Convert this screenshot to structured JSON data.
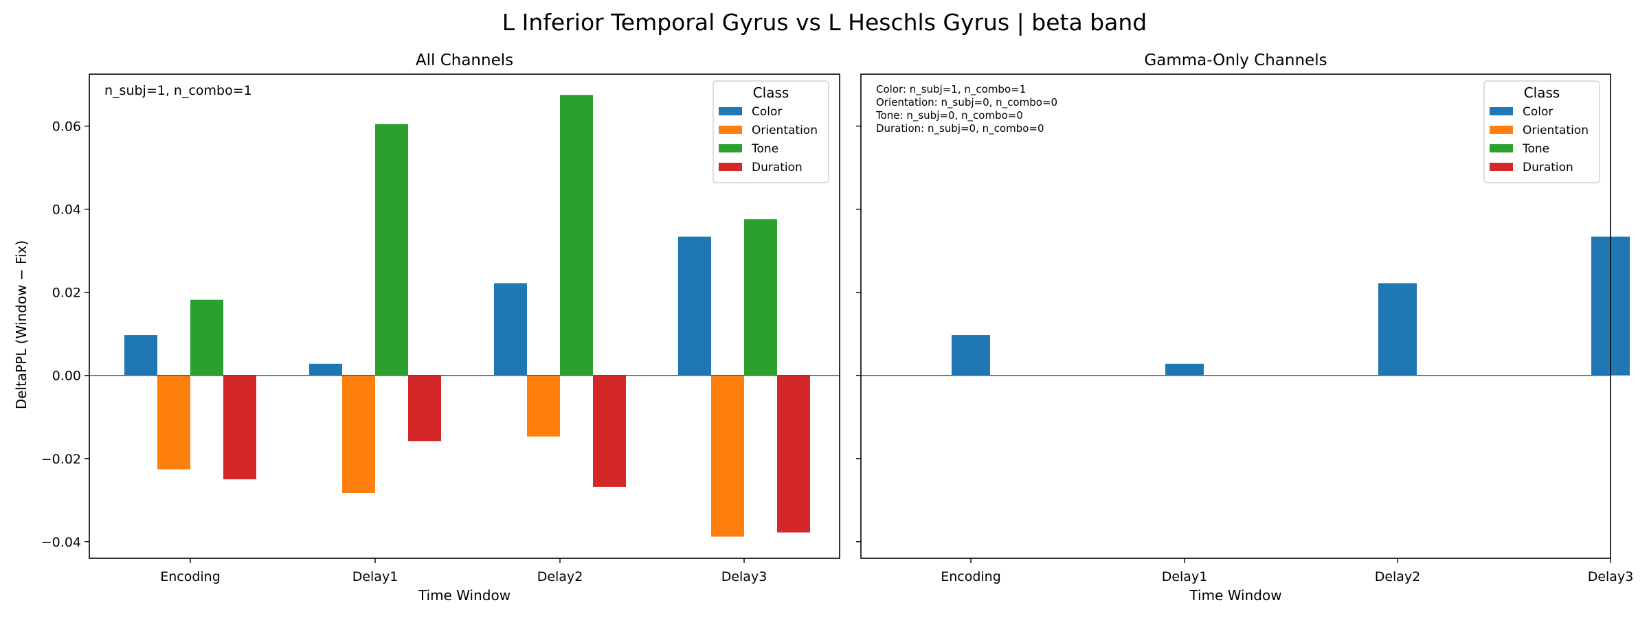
{
  "title": "L Inferior Temporal Gyrus vs L Heschls Gyrus  |  beta band",
  "ylabel": "DeltaPPL (Window − Fix)",
  "chart_data": [
    {
      "type": "bar",
      "title": "All Channels",
      "xlabel": "Time Window",
      "ylabel": "DeltaPPL (Window − Fix)",
      "categories": [
        "Encoding",
        "Delay1",
        "Delay2",
        "Delay3"
      ],
      "series": [
        {
          "name": "Color",
          "color": "#1f77b4",
          "values": [
            0.0097,
            0.0028,
            0.0222,
            0.0334
          ]
        },
        {
          "name": "Orientation",
          "color": "#ff7f0e",
          "values": [
            -0.0226,
            -0.0283,
            -0.0147,
            -0.0388
          ]
        },
        {
          "name": "Tone",
          "color": "#2ca02c",
          "values": [
            0.0182,
            0.0605,
            0.0675,
            0.0376
          ]
        },
        {
          "name": "Duration",
          "color": "#d62728",
          "values": [
            -0.025,
            -0.0158,
            -0.0268,
            -0.0378
          ]
        }
      ],
      "ylim": [
        -0.044,
        0.0725
      ],
      "yticks": [
        -0.04,
        -0.02,
        0.0,
        0.02,
        0.04,
        0.06
      ],
      "yticklabels": [
        "−0.04",
        "−0.02",
        "0.00",
        "0.02",
        "0.04",
        "0.06"
      ],
      "legend": {
        "title": "Class",
        "placement": "top-right"
      },
      "annotations": [
        "n_subj=1, n_combo=1"
      ],
      "grid": false
    },
    {
      "type": "bar",
      "title": "Gamma-Only Channels",
      "xlabel": "Time Window",
      "categories": [
        "Encoding",
        "Delay1",
        "Delay2",
        "Delay3"
      ],
      "series": [
        {
          "name": "Color",
          "color": "#1f77b4",
          "values": [
            0.0097,
            0.0028,
            0.0222,
            0.0334
          ]
        },
        {
          "name": "Orientation",
          "color": "#ff7f0e",
          "values": [
            null,
            null,
            null,
            null
          ]
        },
        {
          "name": "Tone",
          "color": "#2ca02c",
          "values": [
            null,
            null,
            null,
            null
          ]
        },
        {
          "name": "Duration",
          "color": "#d62728",
          "values": [
            null,
            null,
            null,
            null
          ]
        }
      ],
      "ylim": [
        -0.044,
        0.0725
      ],
      "legend": {
        "title": "Class",
        "placement": "top-right"
      },
      "annotations": [
        "Color: n_subj=1, n_combo=1",
        "Orientation: n_subj=0, n_combo=0",
        "Tone: n_subj=0, n_combo=0",
        "Duration: n_subj=0, n_combo=0"
      ],
      "grid": false
    }
  ]
}
